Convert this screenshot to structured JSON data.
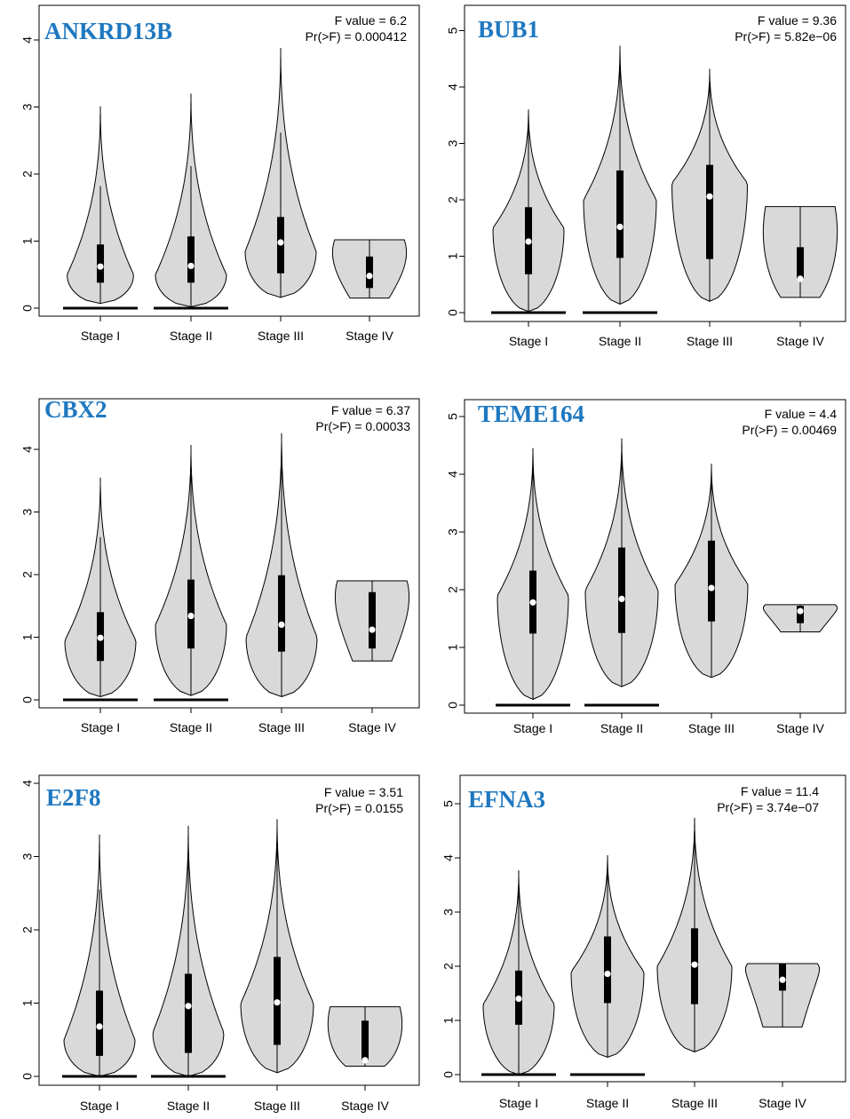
{
  "chart_data": [
    {
      "type": "violin",
      "title": "ANKRD13B",
      "annotations": [
        "F value = 6.2",
        "Pr(>F) = 0.000412"
      ],
      "categories": [
        "Stage I",
        "Stage II",
        "Stage III",
        "Stage IV"
      ],
      "yticks": [
        0,
        1,
        2,
        3,
        4
      ],
      "ylim": [
        -0.05,
        4.1
      ],
      "series": [
        {
          "min": 0.07,
          "q1": 0.38,
          "median": 0.62,
          "q3": 0.95,
          "whisker_hi": 1.82,
          "max": 3.01,
          "mode": 0.5,
          "mode_width": 0.75
        },
        {
          "min": 0.02,
          "q1": 0.38,
          "median": 0.63,
          "q3": 1.07,
          "whisker_hi": 2.12,
          "max": 3.2,
          "mode": 0.5,
          "mode_width": 0.8
        },
        {
          "min": 0.16,
          "q1": 0.52,
          "median": 0.98,
          "q3": 1.36,
          "whisker_hi": 2.62,
          "max": 3.88,
          "mode": 0.85,
          "mode_width": 0.8
        },
        {
          "min": 0.15,
          "q1": 0.3,
          "median": 0.48,
          "q3": 0.77,
          "whisker_hi": 1.02,
          "max": 1.02,
          "mode": 0.5,
          "mode_width": 0.8,
          "flat_top": true
        }
      ],
      "zero_bars": [
        0,
        1
      ]
    },
    {
      "type": "violin",
      "title": "BUB1",
      "annotations": [
        "F value = 9.36",
        "Pr(>F) = 5.82e−06"
      ],
      "categories": [
        "Stage I",
        "Stage II",
        "Stage III",
        "Stage IV"
      ],
      "yticks": [
        0,
        1,
        2,
        3,
        4,
        5
      ],
      "ylim": [
        -0.05,
        5.3
      ],
      "series": [
        {
          "min": 0.02,
          "q1": 0.68,
          "median": 1.26,
          "q3": 1.87,
          "whisker_hi": 3.6,
          "max": 3.6,
          "mode": 1.5,
          "mode_width": 0.8
        },
        {
          "min": 0.15,
          "q1": 0.97,
          "median": 1.52,
          "q3": 2.52,
          "whisker_hi": 4.73,
          "max": 4.73,
          "mode": 2.0,
          "mode_width": 0.82
        },
        {
          "min": 0.2,
          "q1": 0.95,
          "median": 2.06,
          "q3": 2.62,
          "whisker_hi": 4.32,
          "max": 4.32,
          "mode": 2.3,
          "mode_width": 0.85
        },
        {
          "min": 0.27,
          "q1": 0.6,
          "median": 0.6,
          "q3": 1.16,
          "whisker_hi": 1.88,
          "max": 1.88,
          "mode": 0.65,
          "mode_width": 0.8,
          "flat_top": true
        }
      ],
      "zero_bars": [
        0,
        1
      ]
    },
    {
      "type": "violin",
      "title": "CBX2",
      "annotations": [
        "F value = 6.37",
        "Pr(>F) = 0.00033"
      ],
      "categories": [
        "Stage I",
        "Stage II",
        "Stage III",
        "Stage IV"
      ],
      "yticks": [
        0,
        1,
        2,
        3,
        4
      ],
      "ylim": [
        -0.05,
        4.55
      ],
      "series": [
        {
          "min": 0.05,
          "q1": 0.62,
          "median": 0.99,
          "q3": 1.4,
          "whisker_hi": 2.6,
          "max": 3.55,
          "mode": 0.95,
          "mode_width": 0.8
        },
        {
          "min": 0.07,
          "q1": 0.82,
          "median": 1.34,
          "q3": 1.92,
          "whisker_hi": 3.6,
          "max": 4.07,
          "mode": 1.2,
          "mode_width": 0.8
        },
        {
          "min": 0.05,
          "q1": 0.77,
          "median": 1.2,
          "q3": 1.99,
          "whisker_hi": 3.82,
          "max": 4.26,
          "mode": 1.0,
          "mode_width": 0.8
        },
        {
          "min": 0.62,
          "q1": 0.82,
          "median": 1.12,
          "q3": 1.72,
          "whisker_hi": 1.9,
          "max": 1.9,
          "mode": 1.2,
          "mode_width": 0.8,
          "flat_top": true
        }
      ],
      "zero_bars": [
        0,
        1
      ]
    },
    {
      "type": "violin",
      "title": "TEME164",
      "annotations": [
        "F value = 4.4",
        "Pr(>F) = 0.00469"
      ],
      "categories": [
        "Stage I",
        "Stage II",
        "Stage III",
        "Stage IV"
      ],
      "yticks": [
        0,
        1,
        2,
        3,
        4,
        5
      ],
      "ylim": [
        -0.05,
        5.3
      ],
      "series": [
        {
          "min": 0.1,
          "q1": 1.24,
          "median": 1.78,
          "q3": 2.33,
          "whisker_hi": 4.45,
          "max": 4.45,
          "mode": 1.9,
          "mode_width": 0.8
        },
        {
          "min": 0.32,
          "q1": 1.25,
          "median": 1.84,
          "q3": 2.73,
          "whisker_hi": 4.62,
          "max": 4.62,
          "mode": 2.0,
          "mode_width": 0.82
        },
        {
          "min": 0.48,
          "q1": 1.45,
          "median": 2.03,
          "q3": 2.85,
          "whisker_hi": 4.18,
          "max": 4.18,
          "mode": 2.1,
          "mode_width": 0.82
        },
        {
          "min": 1.27,
          "q1": 1.42,
          "median": 1.63,
          "q3": 1.72,
          "whisker_hi": 1.74,
          "max": 1.74,
          "mode": 1.6,
          "mode_width": 0.8,
          "flat_top": true
        }
      ],
      "zero_bars": [
        0,
        1
      ]
    },
    {
      "type": "violin",
      "title": "E2F8",
      "annotations": [
        "F value = 3.51",
        "Pr(>F) = 0.0155"
      ],
      "categories": [
        "Stage I",
        "Stage II",
        "Stage III",
        "Stage IV"
      ],
      "yticks": [
        0,
        1,
        2,
        3,
        4
      ],
      "ylim": [
        -0.05,
        4.0
      ],
      "series": [
        {
          "min": 0.0,
          "q1": 0.28,
          "median": 0.68,
          "q3": 1.17,
          "whisker_hi": 2.55,
          "max": 3.3,
          "mode": 0.5,
          "mode_width": 0.8
        },
        {
          "min": 0.0,
          "q1": 0.32,
          "median": 0.96,
          "q3": 1.4,
          "whisker_hi": 3.02,
          "max": 3.42,
          "mode": 0.6,
          "mode_width": 0.8
        },
        {
          "min": 0.05,
          "q1": 0.43,
          "median": 1.01,
          "q3": 1.63,
          "whisker_hi": 3.43,
          "max": 3.51,
          "mode": 1.0,
          "mode_width": 0.82
        },
        {
          "min": 0.14,
          "q1": 0.22,
          "median": 0.22,
          "q3": 0.76,
          "whisker_hi": 0.95,
          "max": 0.95,
          "mode": 0.3,
          "mode_width": 0.8,
          "flat_top": true
        }
      ],
      "zero_bars": [
        0,
        1
      ]
    },
    {
      "type": "violin",
      "title": "EFNA3",
      "annotations": [
        "F value = 11.4",
        "Pr(>F) = 3.74e−07"
      ],
      "categories": [
        "Stage I",
        "Stage II",
        "Stage III",
        "Stage IV"
      ],
      "yticks": [
        0,
        1,
        2,
        3,
        4,
        5
      ],
      "ylim": [
        -0.05,
        5.3
      ],
      "series": [
        {
          "min": 0.0,
          "q1": 0.92,
          "median": 1.4,
          "q3": 1.92,
          "whisker_hi": 3.45,
          "max": 3.77,
          "mode": 1.3,
          "mode_width": 0.8
        },
        {
          "min": 0.32,
          "q1": 1.32,
          "median": 1.86,
          "q3": 2.55,
          "whisker_hi": 4.05,
          "max": 4.05,
          "mode": 1.9,
          "mode_width": 0.82
        },
        {
          "min": 0.42,
          "q1": 1.3,
          "median": 2.03,
          "q3": 2.7,
          "whisker_hi": 4.74,
          "max": 4.74,
          "mode": 2.0,
          "mode_width": 0.84
        },
        {
          "min": 0.88,
          "q1": 1.55,
          "median": 1.75,
          "q3": 2.05,
          "whisker_hi": 2.05,
          "max": 2.05,
          "mode": 1.8,
          "mode_width": 0.8,
          "flat_top": true
        }
      ],
      "zero_bars": [
        0,
        1
      ]
    }
  ]
}
